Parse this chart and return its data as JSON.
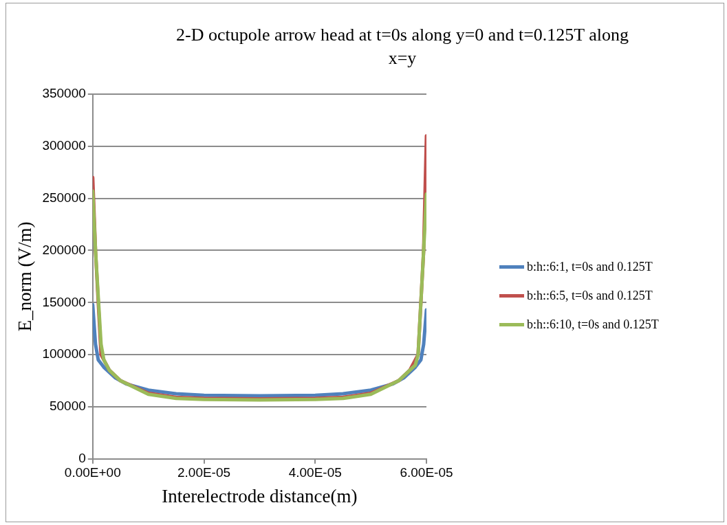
{
  "chart_data": {
    "type": "line",
    "title": "2-D octupole arrow head at t=0s along y=0 and t=0.125T along x=y",
    "xlabel": "Interelectrode distance(m)",
    "ylabel": "E_norm (V/m)",
    "xlim": [
      0,
      6e-05
    ],
    "xticks": [
      {
        "value": 0,
        "label": "0.00E+00"
      },
      {
        "value": 2e-05,
        "label": "2.00E-05"
      },
      {
        "value": 4e-05,
        "label": "4.00E-05"
      },
      {
        "value": 6e-05,
        "label": "6.00E-05"
      }
    ],
    "ylim": [
      0,
      350000
    ],
    "yticks": [
      0,
      50000,
      100000,
      150000,
      200000,
      250000,
      300000,
      350000
    ],
    "grid": "y",
    "legend": "right",
    "marker": "none",
    "line_style": "solid",
    "series": [
      {
        "name": "b:h::6:1, t=0s and 0.125T",
        "color": "#4f81bd",
        "x": [
          0,
          5e-07,
          1e-06,
          2e-06,
          4e-06,
          6e-06,
          1e-05,
          1.5e-05,
          2e-05,
          3e-05,
          4e-05,
          4.5e-05,
          5e-05,
          5.4e-05,
          5.6e-05,
          5.8e-05,
          5.9e-05,
          5.95e-05,
          6e-05
        ],
        "values": [
          148000,
          110000,
          95000,
          88000,
          78000,
          72000,
          66000,
          62500,
          61000,
          60500,
          61000,
          62500,
          66000,
          72000,
          78000,
          88000,
          95000,
          110000,
          143000
        ]
      },
      {
        "name": "b:h::6:5, t=0s and 0.125T",
        "color": "#c0504d",
        "x": [
          0,
          5e-07,
          1.5e-06,
          3e-06,
          5e-06,
          1e-05,
          1.5e-05,
          2e-05,
          3e-05,
          4e-05,
          4.5e-05,
          5e-05,
          5.5e-05,
          5.7e-05,
          5.85e-05,
          5.95e-05,
          6e-05
        ],
        "values": [
          270000,
          200000,
          100000,
          85000,
          75000,
          63000,
          59000,
          58000,
          57500,
          58000,
          59000,
          63000,
          75000,
          85000,
          100000,
          200000,
          310000
        ]
      },
      {
        "name": "b:h::6:10, t=0s and 0.125T",
        "color": "#9bbb59",
        "x": [
          0,
          5e-07,
          1.5e-06,
          2e-06,
          3e-06,
          5e-06,
          1e-05,
          1.5e-05,
          2e-05,
          3e-05,
          4e-05,
          4.5e-05,
          5e-05,
          5.5e-05,
          5.7e-05,
          5.8e-05,
          5.85e-05,
          5.95e-05,
          6e-05
        ],
        "values": [
          257000,
          200000,
          110000,
          95000,
          85000,
          75000,
          62000,
          58000,
          57000,
          56500,
          57000,
          58000,
          62000,
          75000,
          85000,
          90000,
          100000,
          200000,
          254000
        ]
      }
    ]
  }
}
